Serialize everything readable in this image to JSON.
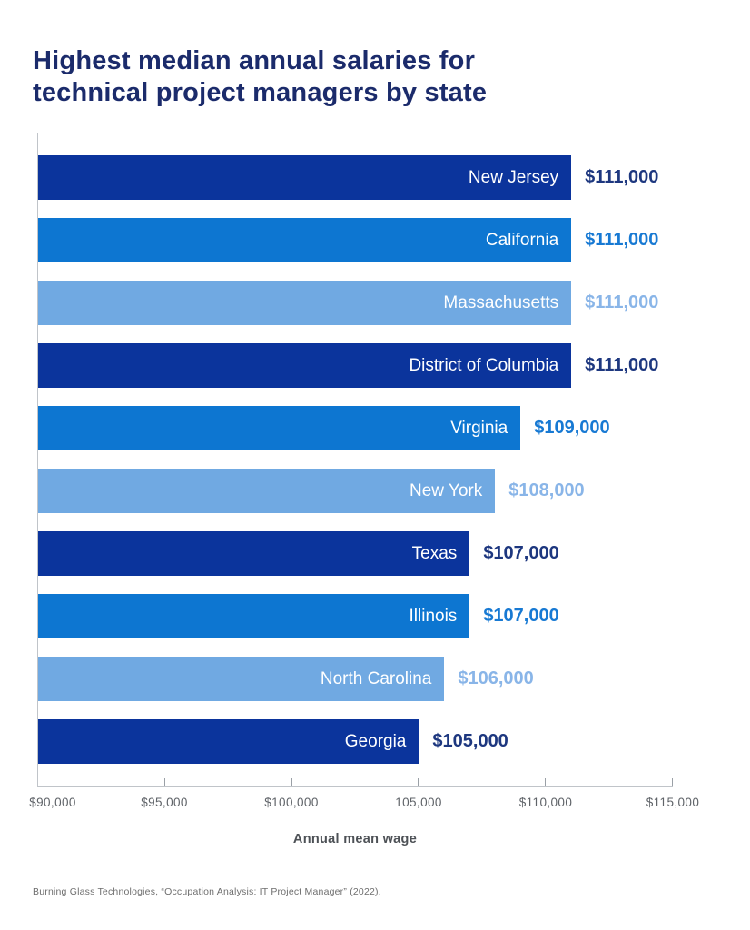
{
  "title": {
    "line1": "Highest median annual salaries for",
    "line2": "technical project managers by state"
  },
  "chart_data": {
    "type": "bar",
    "orientation": "horizontal",
    "title": "Highest median annual salaries for technical project managers by state",
    "categories": [
      "New Jersey",
      "California",
      "Massachusetts",
      "District of Columbia",
      "Virginia",
      "New York",
      "Texas",
      "Illinois",
      "North Carolina",
      "Georgia"
    ],
    "values": [
      111000,
      111000,
      111000,
      111000,
      109000,
      108000,
      107000,
      107000,
      106000,
      105000
    ],
    "value_labels": [
      "$111,000",
      "$111,000",
      "$111,000",
      "$111,000",
      "$109,000",
      "$108,000",
      "$107,000",
      "$107,000",
      "$106,000",
      "$105,000"
    ],
    "bar_tones": [
      "dark",
      "medium",
      "light",
      "dark",
      "medium",
      "light",
      "dark",
      "medium",
      "light",
      "dark"
    ],
    "xlabel": "Annual mean wage",
    "x_ticks": [
      "$90,000",
      "$95,000",
      "$100,000",
      "105,000",
      "$110,000",
      "$115,000"
    ],
    "x_tick_values": [
      90000,
      95000,
      100000,
      105000,
      110000,
      115000
    ],
    "xlim": [
      90000,
      115000
    ],
    "grid": false,
    "legend": "none"
  },
  "colors": {
    "title": "#1b2b6b",
    "dark": "#0b349c",
    "medium": "#0d76d1",
    "light": "#70a9e2",
    "dark_label": "#1d377f",
    "medium_label": "#1779d3",
    "light_label": "#89b5e8",
    "axis": "#c0c4c9",
    "tick_text": "#5f6368"
  },
  "source": "Burning Glass Technologies, “Occupation Analysis: IT Project Manager” (2022)."
}
